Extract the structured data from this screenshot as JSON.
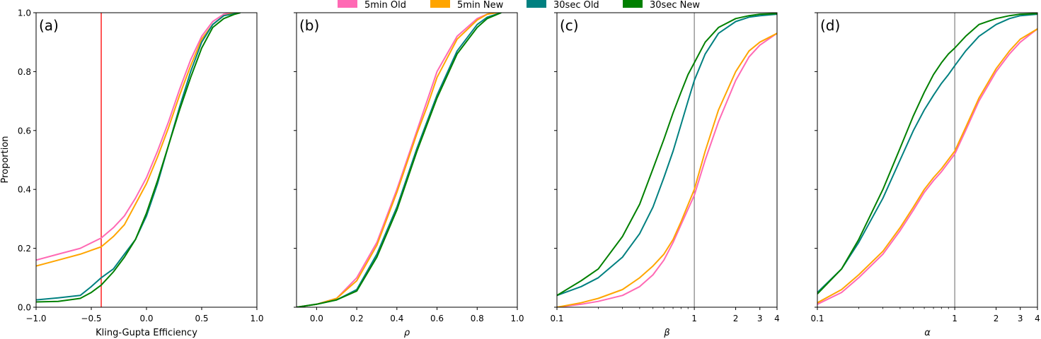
{
  "legend": {
    "placement": "top-center",
    "items": [
      {
        "label": "5min Old",
        "color": "#ff69b4"
      },
      {
        "label": "5min New",
        "color": "#ffa500"
      },
      {
        "label": "30sec Old",
        "color": "#008080"
      },
      {
        "label": "30sec New",
        "color": "#008000"
      }
    ]
  },
  "chart_data": [
    {
      "type": "line",
      "panel_label": "(a)",
      "xlabel": "Kling-Gupta Efficiency",
      "ylabel": "Proportion",
      "xscale": "linear",
      "xlim": [
        -1.0,
        1.0
      ],
      "ylim": [
        0.0,
        1.0
      ],
      "xticks": [
        -1.0,
        -0.5,
        0.0,
        0.5,
        1.0
      ],
      "xtick_labels": [
        "−1.0",
        "−0.5",
        "0.0",
        "0.5",
        "1.0"
      ],
      "yticks": [
        0.0,
        0.2,
        0.4,
        0.6,
        0.8,
        1.0
      ],
      "ytick_labels": [
        "0.0",
        "0.2",
        "0.4",
        "0.6",
        "0.8",
        "1.0"
      ],
      "reference_line": {
        "x": -0.41,
        "color": "#ff0000"
      },
      "series": [
        {
          "name": "5min Old",
          "x": [
            -1.0,
            -0.8,
            -0.6,
            -0.41,
            -0.3,
            -0.2,
            -0.1,
            0.0,
            0.1,
            0.2,
            0.3,
            0.4,
            0.5,
            0.6,
            0.7,
            0.78
          ],
          "y": [
            0.16,
            0.18,
            0.2,
            0.235,
            0.27,
            0.31,
            0.37,
            0.44,
            0.53,
            0.63,
            0.74,
            0.84,
            0.92,
            0.97,
            0.995,
            1.0
          ]
        },
        {
          "name": "5min New",
          "x": [
            -1.0,
            -0.8,
            -0.6,
            -0.41,
            -0.3,
            -0.2,
            -0.1,
            0.0,
            0.1,
            0.2,
            0.3,
            0.4,
            0.5,
            0.6,
            0.7,
            0.8
          ],
          "y": [
            0.14,
            0.16,
            0.18,
            0.205,
            0.24,
            0.28,
            0.35,
            0.42,
            0.51,
            0.61,
            0.72,
            0.82,
            0.91,
            0.96,
            0.99,
            1.0
          ]
        },
        {
          "name": "30sec Old",
          "x": [
            -1.0,
            -0.8,
            -0.6,
            -0.5,
            -0.41,
            -0.3,
            -0.2,
            -0.1,
            0.0,
            0.1,
            0.2,
            0.3,
            0.4,
            0.5,
            0.6,
            0.7,
            0.85
          ],
          "y": [
            0.025,
            0.032,
            0.04,
            0.07,
            0.1,
            0.13,
            0.18,
            0.23,
            0.31,
            0.42,
            0.55,
            0.68,
            0.8,
            0.9,
            0.96,
            0.99,
            1.0
          ]
        },
        {
          "name": "30sec New",
          "x": [
            -1.0,
            -0.8,
            -0.6,
            -0.5,
            -0.41,
            -0.3,
            -0.2,
            -0.1,
            0.0,
            0.1,
            0.2,
            0.3,
            0.4,
            0.5,
            0.6,
            0.7,
            0.8,
            0.85
          ],
          "y": [
            0.018,
            0.02,
            0.03,
            0.05,
            0.075,
            0.12,
            0.17,
            0.23,
            0.32,
            0.43,
            0.55,
            0.67,
            0.78,
            0.88,
            0.95,
            0.98,
            0.995,
            1.0
          ]
        }
      ]
    },
    {
      "type": "line",
      "panel_label": "(b)",
      "xlabel": "ρ",
      "ylabel": "",
      "xscale": "linear",
      "xlim": [
        -0.1,
        1.0
      ],
      "ylim": [
        0.0,
        1.0
      ],
      "xticks": [
        0.0,
        0.2,
        0.4,
        0.6,
        0.8,
        1.0
      ],
      "xtick_labels": [
        "0.0",
        "0.2",
        "0.4",
        "0.6",
        "0.8",
        "1.0"
      ],
      "yticks": [
        0.0,
        0.2,
        0.4,
        0.6,
        0.8,
        1.0
      ],
      "ytick_labels": [],
      "series": [
        {
          "name": "5min Old",
          "x": [
            -0.1,
            0.0,
            0.1,
            0.2,
            0.3,
            0.4,
            0.5,
            0.55,
            0.6,
            0.7,
            0.8,
            0.85,
            0.88
          ],
          "y": [
            0.0,
            0.01,
            0.03,
            0.1,
            0.22,
            0.4,
            0.6,
            0.7,
            0.8,
            0.92,
            0.98,
            0.995,
            1.0
          ]
        },
        {
          "name": "5min New",
          "x": [
            -0.1,
            0.0,
            0.1,
            0.2,
            0.3,
            0.4,
            0.5,
            0.55,
            0.6,
            0.7,
            0.8,
            0.85,
            0.9
          ],
          "y": [
            0.0,
            0.01,
            0.03,
            0.09,
            0.21,
            0.39,
            0.59,
            0.68,
            0.78,
            0.91,
            0.975,
            0.995,
            1.0
          ]
        },
        {
          "name": "30sec Old",
          "x": [
            -0.1,
            0.0,
            0.1,
            0.2,
            0.3,
            0.4,
            0.5,
            0.6,
            0.7,
            0.8,
            0.85,
            0.92
          ],
          "y": [
            0.0,
            0.01,
            0.025,
            0.06,
            0.18,
            0.34,
            0.54,
            0.72,
            0.87,
            0.96,
            0.985,
            1.0
          ]
        },
        {
          "name": "30sec New",
          "x": [
            -0.1,
            0.0,
            0.1,
            0.2,
            0.3,
            0.4,
            0.5,
            0.6,
            0.7,
            0.8,
            0.85,
            0.92
          ],
          "y": [
            0.0,
            0.01,
            0.025,
            0.055,
            0.17,
            0.33,
            0.53,
            0.71,
            0.86,
            0.95,
            0.98,
            1.0
          ]
        }
      ]
    },
    {
      "type": "line",
      "panel_label": "(c)",
      "xlabel": "β",
      "ylabel": "",
      "xscale": "log",
      "xlim": [
        0.1,
        4
      ],
      "ylim": [
        0.0,
        1.0
      ],
      "xticks": [
        0.1,
        1,
        2,
        3,
        4
      ],
      "xtick_labels": [
        "0.1",
        "1",
        "2",
        "3",
        "4"
      ],
      "yticks": [
        0.0,
        0.2,
        0.4,
        0.6,
        0.8,
        1.0
      ],
      "ytick_labels": [],
      "reference_line": {
        "x": 1,
        "color": "#808080"
      },
      "series": [
        {
          "name": "5min Old",
          "x": [
            0.1,
            0.15,
            0.2,
            0.3,
            0.4,
            0.5,
            0.6,
            0.7,
            0.8,
            1.0,
            1.2,
            1.5,
            2.0,
            2.5,
            3.0,
            4.0
          ],
          "y": [
            0.0,
            0.01,
            0.02,
            0.04,
            0.07,
            0.11,
            0.16,
            0.22,
            0.28,
            0.38,
            0.5,
            0.63,
            0.77,
            0.85,
            0.89,
            0.93
          ]
        },
        {
          "name": "5min New",
          "x": [
            0.1,
            0.15,
            0.2,
            0.3,
            0.4,
            0.5,
            0.6,
            0.7,
            0.8,
            1.0,
            1.2,
            1.5,
            2.0,
            2.5,
            3.0,
            4.0
          ],
          "y": [
            0.0,
            0.015,
            0.03,
            0.06,
            0.1,
            0.14,
            0.18,
            0.23,
            0.29,
            0.4,
            0.53,
            0.67,
            0.8,
            0.87,
            0.9,
            0.93
          ]
        },
        {
          "name": "30sec Old",
          "x": [
            0.1,
            0.15,
            0.2,
            0.3,
            0.4,
            0.5,
            0.6,
            0.7,
            0.8,
            0.9,
            1.0,
            1.2,
            1.5,
            2.0,
            2.5,
            3.0,
            4.0
          ],
          "y": [
            0.04,
            0.07,
            0.1,
            0.17,
            0.25,
            0.34,
            0.44,
            0.53,
            0.62,
            0.7,
            0.77,
            0.86,
            0.93,
            0.97,
            0.985,
            0.99,
            0.995
          ]
        },
        {
          "name": "30sec New",
          "x": [
            0.1,
            0.15,
            0.2,
            0.3,
            0.4,
            0.5,
            0.6,
            0.7,
            0.8,
            0.9,
            1.0,
            1.2,
            1.5,
            2.0,
            2.5,
            3.0,
            4.0
          ],
          "y": [
            0.04,
            0.09,
            0.13,
            0.24,
            0.35,
            0.47,
            0.57,
            0.66,
            0.73,
            0.79,
            0.83,
            0.9,
            0.95,
            0.98,
            0.99,
            0.995,
            0.997
          ]
        }
      ]
    },
    {
      "type": "line",
      "panel_label": "(d)",
      "xlabel": "α",
      "ylabel": "",
      "xscale": "log",
      "xlim": [
        0.1,
        4
      ],
      "ylim": [
        0.0,
        1.0
      ],
      "xticks": [
        0.1,
        1,
        2,
        3,
        4
      ],
      "xtick_labels": [
        "0.1",
        "1",
        "2",
        "3",
        "4"
      ],
      "yticks": [
        0.0,
        0.2,
        0.4,
        0.6,
        0.8,
        1.0
      ],
      "ytick_labels": [],
      "reference_line": {
        "x": 1,
        "color": "#808080"
      },
      "series": [
        {
          "name": "5min Old",
          "x": [
            0.1,
            0.15,
            0.2,
            0.3,
            0.4,
            0.5,
            0.6,
            0.7,
            0.8,
            1.0,
            1.2,
            1.5,
            2.0,
            2.5,
            3.0,
            4.0
          ],
          "y": [
            0.01,
            0.05,
            0.1,
            0.18,
            0.26,
            0.33,
            0.39,
            0.43,
            0.46,
            0.52,
            0.6,
            0.7,
            0.8,
            0.86,
            0.9,
            0.945
          ]
        },
        {
          "name": "5min New",
          "x": [
            0.1,
            0.15,
            0.2,
            0.3,
            0.4,
            0.5,
            0.6,
            0.7,
            0.8,
            1.0,
            1.2,
            1.5,
            2.0,
            2.5,
            3.0,
            4.0
          ],
          "y": [
            0.015,
            0.06,
            0.11,
            0.19,
            0.27,
            0.34,
            0.4,
            0.44,
            0.47,
            0.53,
            0.61,
            0.71,
            0.81,
            0.87,
            0.91,
            0.945
          ]
        },
        {
          "name": "30sec Old",
          "x": [
            0.1,
            0.15,
            0.2,
            0.3,
            0.4,
            0.5,
            0.6,
            0.7,
            0.8,
            0.9,
            1.0,
            1.2,
            1.5,
            2.0,
            2.5,
            3.0,
            4.0
          ],
          "y": [
            0.05,
            0.13,
            0.22,
            0.37,
            0.5,
            0.6,
            0.67,
            0.72,
            0.76,
            0.79,
            0.82,
            0.87,
            0.92,
            0.96,
            0.98,
            0.99,
            0.995
          ]
        },
        {
          "name": "30sec New",
          "x": [
            0.1,
            0.15,
            0.2,
            0.3,
            0.4,
            0.5,
            0.6,
            0.7,
            0.8,
            0.9,
            1.0,
            1.2,
            1.5,
            2.0,
            2.5,
            3.0,
            4.0
          ],
          "y": [
            0.045,
            0.13,
            0.23,
            0.4,
            0.54,
            0.65,
            0.73,
            0.79,
            0.83,
            0.86,
            0.88,
            0.92,
            0.96,
            0.98,
            0.99,
            0.995,
            0.997
          ]
        }
      ]
    }
  ]
}
